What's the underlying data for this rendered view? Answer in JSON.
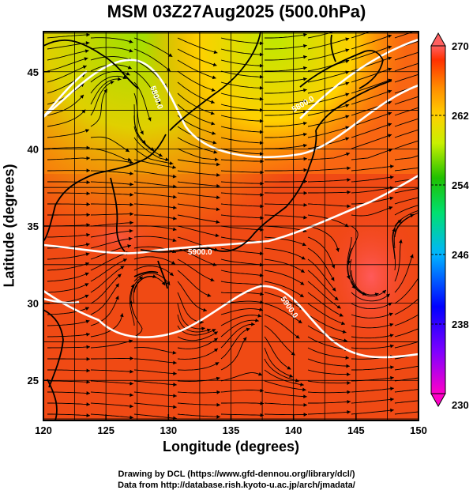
{
  "title": "MSM 03Z27Aug2025 (500.0hPa)",
  "axes": {
    "xlabel": "Longitude (degrees)",
    "ylabel": "Latitude  (degrees)",
    "xticks": [
      120,
      125,
      130,
      135,
      140,
      145,
      150
    ],
    "yticks": [
      25,
      30,
      35,
      40,
      45
    ],
    "xlim": [
      120,
      150
    ],
    "ylim": [
      22.4,
      47.6
    ]
  },
  "colorbar": {
    "min": 230,
    "max": 270,
    "labels": [
      270,
      262,
      254,
      246,
      238,
      230
    ]
  },
  "contour_labels": [
    "5900.0",
    "5900.0",
    "5800.0",
    "5800.0"
  ],
  "credits": {
    "line1": "Drawing by DCL (https://www.gfd-dennou.org/library/dcl/)",
    "line2": "Data from http://database.rish.kyoto-u.ac.jp/arch/jmadata/"
  },
  "colors": {
    "warm": "#f03c10",
    "hot": "#ff5a5a",
    "mid": "#ff8c00",
    "cool": "#c8e000",
    "contour": "#ffffff"
  }
}
